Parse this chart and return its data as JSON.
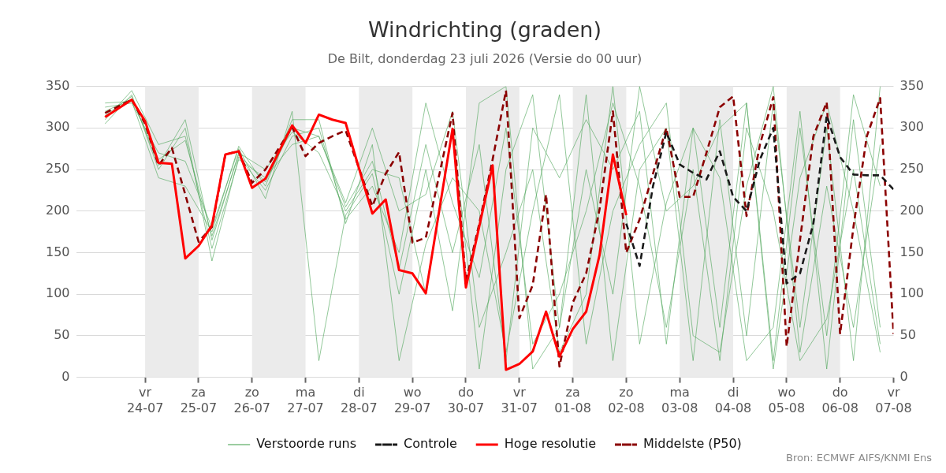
{
  "chart_data": {
    "type": "line",
    "title": "Windrichting (graden)",
    "subtitle": "De Bilt, donderdag 23 juli 2026 (Versie do 00 uur)",
    "annotations": [
      "Bron: ECMWF AIFS/KNMI Ens"
    ],
    "x": [
      "2026-07-23T06:00",
      "2026-07-23T18:00",
      "2026-07-24T06:00",
      "2026-07-24T18:00",
      "2026-07-25T06:00",
      "2026-07-25T18:00",
      "2026-07-26T06:00",
      "2026-07-26T18:00",
      "2026-07-27T06:00",
      "2026-07-27T18:00",
      "2026-07-28T06:00",
      "2026-07-28T18:00",
      "2026-07-29T06:00",
      "2026-07-29T18:00",
      "2026-07-30T06:00",
      "2026-07-30T18:00",
      "2026-07-31T06:00",
      "2026-07-31T18:00",
      "2026-08-01T06:00",
      "2026-08-01T18:00",
      "2026-08-02T06:00",
      "2026-08-02T18:00",
      "2026-08-03T06:00",
      "2026-08-03T18:00",
      "2026-08-04T06:00",
      "2026-08-04T18:00",
      "2026-08-05T06:00",
      "2026-08-05T18:00",
      "2026-08-06T06:00",
      "2026-08-06T18:00"
    ],
    "series": [
      {
        "name": "Verstoorde runs",
        "color": "#52a85c",
        "values": [
          320,
          335,
          262,
          285,
          170,
          268,
          235,
          300,
          290,
          205,
          260,
          130,
          280,
          150,
          280,
          20,
          300,
          240,
          310,
          250,
          320,
          40,
          300,
          60,
          330,
          20,
          300,
          50,
          340,
          230
        ]
      },
      {
        "color": "#52a85c",
        "values": [
          305,
          340,
          250,
          300,
          140,
          265,
          225,
          290,
          300,
          190,
          230,
          150,
          330,
          210,
          120,
          300,
          40,
          100,
          200,
          330,
          230,
          60,
          250,
          20,
          300,
          200,
          20,
          70,
          250,
          40
        ]
      },
      {
        "color": "#52a85c",
        "values": [
          325,
          330,
          270,
          260,
          180,
          275,
          215,
          320,
          20,
          195,
          245,
          100,
          250,
          80,
          330,
          350,
          10,
          60,
          340,
          20,
          250,
          300,
          20,
          310,
          50,
          330,
          60,
          300,
          20,
          350
        ]
      },
      {
        "color": "#52a85c",
        "values": [
          310,
          345,
          280,
          290,
          155,
          262,
          240,
          280,
          290,
          210,
          300,
          200,
          220,
          320,
          60,
          150,
          250,
          30,
          100,
          350,
          40,
          210,
          300,
          240,
          20,
          60,
          320,
          10,
          310,
          60
        ]
      },
      {
        "color": "#52a85c",
        "values": [
          330,
          332,
          240,
          230,
          175,
          278,
          230,
          310,
          310,
          185,
          280,
          20,
          160,
          240,
          200,
          30,
          200,
          340,
          40,
          200,
          280,
          330,
          50,
          30,
          230,
          350,
          30,
          230,
          60,
          280
        ]
      },
      {
        "color": "#52a85c",
        "values": [
          315,
          338,
          255,
          310,
          165,
          270,
          250,
          295,
          270,
          200,
          250,
          240,
          100,
          300,
          10,
          250,
          340,
          60,
          250,
          100,
          350,
          200,
          230,
          300,
          330,
          10,
          240,
          330,
          200,
          30
        ]
      },
      {
        "name": "Controle",
        "color": "#1a1a1a",
        "line_style": "dashed",
        "x": [
          "2026-08-02T00:00",
          "2026-08-02T06:00",
          "2026-08-02T12:00",
          "2026-08-02T18:00",
          "2026-08-03T00:00",
          "2026-08-03T06:00",
          "2026-08-03T12:00",
          "2026-08-03T18:00",
          "2026-08-04T00:00",
          "2026-08-04T06:00",
          "2026-08-04T12:00",
          "2026-08-04T18:00",
          "2026-08-05T00:00",
          "2026-08-05T06:00",
          "2026-08-05T12:00",
          "2026-08-05T18:00",
          "2026-08-06T00:00",
          "2026-08-06T06:00",
          "2026-08-06T12:00",
          "2026-08-06T18:00",
          "2026-08-07T00:00"
        ],
        "values": [
          185,
          134,
          230,
          295,
          256,
          246,
          238,
          272,
          217,
          200,
          262,
          300,
          113,
          125,
          185,
          315,
          265,
          244,
          243,
          243,
          226
        ]
      },
      {
        "name": "Hoge resolutie",
        "color": "#ff0000",
        "x": [
          "2026-07-23T06:00",
          "2026-07-23T18:00",
          "2026-07-24T00:00",
          "2026-07-24T06:00",
          "2026-07-24T12:00",
          "2026-07-24T18:00",
          "2026-07-25T00:00",
          "2026-07-25T06:00",
          "2026-07-25T12:00",
          "2026-07-25T18:00",
          "2026-07-26T00:00",
          "2026-07-26T06:00",
          "2026-07-26T18:00",
          "2026-07-27T00:00",
          "2026-07-27T06:00",
          "2026-07-27T12:00",
          "2026-07-27T18:00",
          "2026-07-28T06:00",
          "2026-07-28T12:00",
          "2026-07-28T18:00",
          "2026-07-29T00:00",
          "2026-07-29T06:00",
          "2026-07-29T18:00",
          "2026-07-30T00:00",
          "2026-07-30T12:00",
          "2026-07-30T18:00",
          "2026-07-31T00:00",
          "2026-07-31T06:00",
          "2026-07-31T12:00",
          "2026-07-31T18:00",
          "2026-08-01T00:00",
          "2026-08-01T06:00",
          "2026-08-01T12:00",
          "2026-08-01T18:00",
          "2026-08-02T00:00"
        ],
        "values": [
          313,
          334,
          308,
          258,
          257,
          143,
          158,
          183,
          268,
          272,
          228,
          239,
          303,
          282,
          316,
          310,
          306,
          197,
          214,
          129,
          125,
          101,
          299,
          108,
          255,
          9,
          16,
          31,
          79,
          25,
          58,
          79,
          147,
          268,
          195
        ]
      },
      {
        "name": "Middelste (P50)",
        "color": "#8b0000",
        "line_style": "dashed",
        "x": [
          "2026-07-23T06:00",
          "2026-07-23T18:00",
          "2026-07-24T00:00",
          "2026-07-24T06:00",
          "2026-07-24T12:00",
          "2026-07-24T18:00",
          "2026-07-25T00:00",
          "2026-07-25T06:00",
          "2026-07-25T12:00",
          "2026-07-25T18:00",
          "2026-07-26T00:00",
          "2026-07-26T06:00",
          "2026-07-26T18:00",
          "2026-07-27T00:00",
          "2026-07-27T06:00",
          "2026-07-27T12:00",
          "2026-07-27T18:00",
          "2026-07-28T06:00",
          "2026-07-28T12:00",
          "2026-07-28T18:00",
          "2026-07-29T00:00",
          "2026-07-29T06:00",
          "2026-07-29T18:00",
          "2026-07-30T00:00",
          "2026-07-30T06:00",
          "2026-07-30T12:00",
          "2026-07-30T18:00",
          "2026-07-31T00:00",
          "2026-07-31T06:00",
          "2026-07-31T12:00",
          "2026-07-31T18:00",
          "2026-08-01T00:00",
          "2026-08-01T06:00",
          "2026-08-01T12:00",
          "2026-08-01T18:00",
          "2026-08-02T00:00",
          "2026-08-02T06:00",
          "2026-08-02T12:00",
          "2026-08-02T18:00",
          "2026-08-03T00:00",
          "2026-08-03T06:00",
          "2026-08-03T12:00",
          "2026-08-03T18:00",
          "2026-08-04T00:00",
          "2026-08-04T06:00",
          "2026-08-04T12:00",
          "2026-08-04T18:00",
          "2026-08-05T00:00",
          "2026-08-05T06:00",
          "2026-08-05T12:00",
          "2026-08-05T18:00",
          "2026-08-06T00:00",
          "2026-08-06T06:00",
          "2026-08-06T12:00",
          "2026-08-06T18:00",
          "2026-08-07T00:00"
        ],
        "values": [
          318,
          334,
          305,
          255,
          276,
          220,
          163,
          181,
          268,
          272,
          234,
          250,
          301,
          266,
          282,
          290,
          297,
          206,
          245,
          271,
          162,
          168,
          318,
          115,
          185,
          262,
          345,
          71,
          111,
          220,
          13,
          90,
          125,
          202,
          320,
          150,
          190,
          245,
          300,
          217,
          217,
          270,
          325,
          338,
          194,
          280,
          337,
          37,
          165,
          290,
          331,
          52,
          181,
          290,
          336,
          52
        ]
      }
    ],
    "xlim": [
      "2026-07-22T17:00",
      "2026-08-07T00:00"
    ],
    "xticks": [
      {
        "value": "2026-07-24",
        "label": "vr\n24-07"
      },
      {
        "value": "2026-07-25",
        "label": "za\n25-07"
      },
      {
        "value": "2026-07-26",
        "label": "zo\n26-07"
      },
      {
        "value": "2026-07-27",
        "label": "ma\n27-07"
      },
      {
        "value": "2026-07-28",
        "label": "di\n28-07"
      },
      {
        "value": "2026-07-29",
        "label": "wo\n29-07"
      },
      {
        "value": "2026-07-30",
        "label": "do\n30-07"
      },
      {
        "value": "2026-07-31",
        "label": "vr\n31-07"
      },
      {
        "value": "2026-08-01",
        "label": "za\n01-08"
      },
      {
        "value": "2026-08-02",
        "label": "zo\n02-08"
      },
      {
        "value": "2026-08-03",
        "label": "ma\n03-08"
      },
      {
        "value": "2026-08-04",
        "label": "di\n04-08"
      },
      {
        "value": "2026-08-05",
        "label": "wo\n05-08"
      },
      {
        "value": "2026-08-06",
        "label": "do\n06-08"
      },
      {
        "value": "2026-08-07",
        "label": "vr\n07-08"
      }
    ],
    "ylim": [
      0,
      350
    ],
    "yticks": [
      0,
      50,
      100,
      150,
      200,
      250,
      300,
      350
    ],
    "y2lim": [
      0,
      350
    ],
    "y2ticks": [
      0,
      50,
      100,
      150,
      200,
      250,
      300,
      350
    ],
    "bands": [
      {
        "axis": "x",
        "from": "2026-07-24",
        "to": "2026-07-25",
        "color": "#ebebeb"
      },
      {
        "axis": "x",
        "from": "2026-07-26",
        "to": "2026-07-27",
        "color": "#ebebeb"
      },
      {
        "axis": "x",
        "from": "2026-07-28",
        "to": "2026-07-29",
        "color": "#ebebeb"
      },
      {
        "axis": "x",
        "from": "2026-07-30",
        "to": "2026-07-31",
        "color": "#ebebeb"
      },
      {
        "axis": "x",
        "from": "2026-08-01",
        "to": "2026-08-02",
        "color": "#ebebeb"
      },
      {
        "axis": "x",
        "from": "2026-08-03",
        "to": "2026-08-04",
        "color": "#ebebeb"
      },
      {
        "axis": "x",
        "from": "2026-08-05",
        "to": "2026-08-06",
        "color": "#ebebeb"
      }
    ],
    "grid": "y",
    "legend": "bottom",
    "marker": "none"
  }
}
